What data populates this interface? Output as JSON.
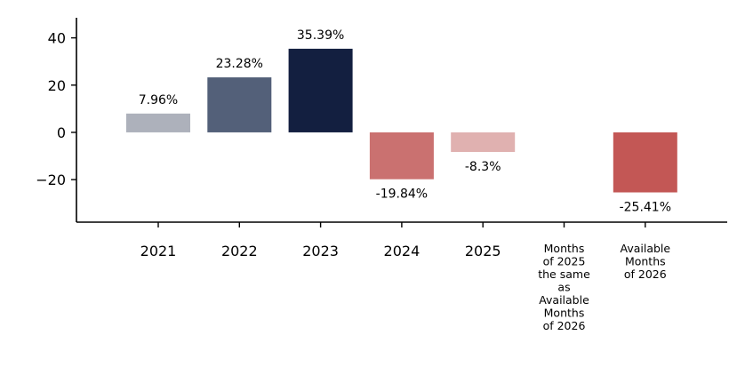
{
  "chart_data": {
    "type": "bar",
    "categories": [
      "2021",
      "2022",
      "2023",
      "2024",
      "2025",
      "Months\nof 2025\nthe same\nas\nAvailable\nMonths\nof 2026",
      "Available\nMonths\nof 2026"
    ],
    "values": [
      7.96,
      23.28,
      35.39,
      -19.84,
      -8.3,
      null,
      -25.41
    ],
    "data_labels": [
      "7.96%",
      "23.28%",
      "35.39%",
      "-19.84%",
      "-8.3%",
      "",
      "-25.41%"
    ],
    "colors": [
      "#adb1bb",
      "#536079",
      "#131f40",
      "#ca7170",
      "#e0b1b0",
      "#ffffff",
      "#c35755"
    ],
    "ylim": [
      -38,
      48.5
    ],
    "yticks": [
      -20,
      0,
      20,
      40
    ],
    "ytick_labels": [
      "−20",
      "0",
      "20",
      "40"
    ],
    "title": "",
    "xlabel": "",
    "ylabel": "",
    "grid": false
  }
}
